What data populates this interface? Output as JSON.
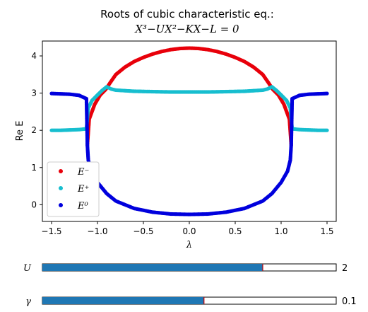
{
  "chart_data": {
    "type": "scatter",
    "title_line1": "Roots of cubic characteristic eq.:",
    "title_line2": "X³−UX²−KX−L = 0",
    "xlabel": "λ",
    "ylabel": "Re E",
    "xlim": [
      -1.6,
      1.6
    ],
    "ylim": [
      -0.45,
      4.4
    ],
    "xticks": [
      "−1.5",
      "−1.0",
      "−0.5",
      "0.0",
      "0.5",
      "1.0",
      "1.5"
    ],
    "xtick_values": [
      -1.5,
      -1.0,
      -0.5,
      0.0,
      0.5,
      1.0,
      1.5
    ],
    "yticks": [
      "0",
      "1",
      "2",
      "3",
      "4"
    ],
    "ytick_values": [
      0,
      1,
      2,
      3,
      4
    ],
    "grid": false,
    "legend_position": "lower-left",
    "series": [
      {
        "name": "E⁻",
        "color": "#e8000b",
        "points": [
          [
            -1.11,
            1.6
          ],
          [
            -1.09,
            2.3
          ],
          [
            -1.06,
            2.5
          ],
          [
            -1.03,
            2.7
          ],
          [
            -0.97,
            2.95
          ],
          [
            -0.91,
            3.1
          ],
          [
            -0.87,
            3.25
          ],
          [
            -0.8,
            3.5
          ],
          [
            -0.7,
            3.7
          ],
          [
            -0.6,
            3.85
          ],
          [
            -0.5,
            3.96
          ],
          [
            -0.4,
            4.05
          ],
          [
            -0.3,
            4.12
          ],
          [
            -0.2,
            4.17
          ],
          [
            -0.1,
            4.2
          ],
          [
            0.0,
            4.21
          ],
          [
            0.1,
            4.2
          ],
          [
            0.2,
            4.17
          ],
          [
            0.3,
            4.12
          ],
          [
            0.4,
            4.05
          ],
          [
            0.5,
            3.96
          ],
          [
            0.6,
            3.85
          ],
          [
            0.7,
            3.7
          ],
          [
            0.8,
            3.5
          ],
          [
            0.87,
            3.25
          ],
          [
            0.91,
            3.1
          ],
          [
            0.97,
            2.95
          ],
          [
            1.03,
            2.7
          ],
          [
            1.06,
            2.5
          ],
          [
            1.09,
            2.3
          ],
          [
            1.11,
            1.6
          ]
        ]
      },
      {
        "name": "E⁺",
        "color": "#17becf",
        "points": [
          [
            -1.5,
            2.0
          ],
          [
            -1.4,
            2.0
          ],
          [
            -1.3,
            2.01
          ],
          [
            -1.2,
            2.02
          ],
          [
            -1.12,
            2.04
          ],
          [
            -1.1,
            2.6
          ],
          [
            -1.06,
            2.8
          ],
          [
            -1.0,
            2.95
          ],
          [
            -0.95,
            3.07
          ],
          [
            -0.9,
            3.17
          ],
          [
            -0.85,
            3.11
          ],
          [
            -0.8,
            3.08
          ],
          [
            -0.6,
            3.05
          ],
          [
            -0.4,
            3.04
          ],
          [
            -0.2,
            3.03
          ],
          [
            0.0,
            3.03
          ],
          [
            0.2,
            3.03
          ],
          [
            0.4,
            3.04
          ],
          [
            0.6,
            3.05
          ],
          [
            0.8,
            3.08
          ],
          [
            0.85,
            3.11
          ],
          [
            0.9,
            3.17
          ],
          [
            0.95,
            3.07
          ],
          [
            1.0,
            2.95
          ],
          [
            1.06,
            2.8
          ],
          [
            1.1,
            2.6
          ],
          [
            1.12,
            2.04
          ],
          [
            1.2,
            2.02
          ],
          [
            1.3,
            2.01
          ],
          [
            1.4,
            2.0
          ],
          [
            1.5,
            2.0
          ]
        ]
      },
      {
        "name": "E⁰",
        "color": "#0000dd",
        "points": [
          [
            -1.5,
            2.99
          ],
          [
            -1.4,
            2.98
          ],
          [
            -1.3,
            2.97
          ],
          [
            -1.2,
            2.94
          ],
          [
            -1.12,
            2.85
          ],
          [
            -1.11,
            1.6
          ],
          [
            -1.1,
            1.2
          ],
          [
            -1.07,
            0.9
          ],
          [
            -1.0,
            0.6
          ],
          [
            -0.9,
            0.3
          ],
          [
            -0.8,
            0.1
          ],
          [
            -0.6,
            -0.1
          ],
          [
            -0.4,
            -0.2
          ],
          [
            -0.2,
            -0.25
          ],
          [
            0.0,
            -0.26
          ],
          [
            0.2,
            -0.25
          ],
          [
            0.4,
            -0.2
          ],
          [
            0.6,
            -0.1
          ],
          [
            0.8,
            0.1
          ],
          [
            0.9,
            0.3
          ],
          [
            1.0,
            0.6
          ],
          [
            1.07,
            0.9
          ],
          [
            1.1,
            1.2
          ],
          [
            1.11,
            1.6
          ],
          [
            1.12,
            2.85
          ],
          [
            1.2,
            2.94
          ],
          [
            1.3,
            2.97
          ],
          [
            1.4,
            2.98
          ],
          [
            1.5,
            2.99
          ]
        ]
      }
    ]
  },
  "sliders": [
    {
      "label": "U",
      "value": "2",
      "fill_fraction": 0.75,
      "color": "#1f77b4"
    },
    {
      "label": "γ",
      "value": "0.1",
      "fill_fraction": 0.55,
      "color": "#1f77b4"
    }
  ]
}
